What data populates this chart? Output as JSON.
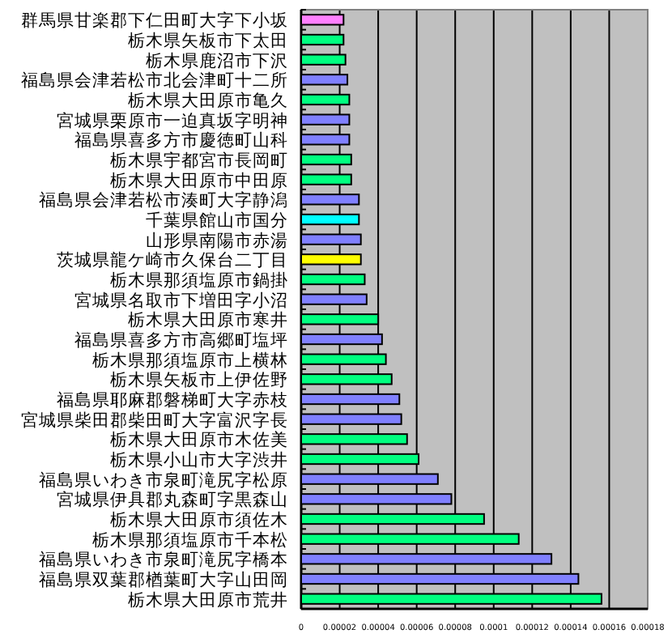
{
  "chart_data": {
    "type": "bar",
    "orientation": "horizontal",
    "categories": [
      "群馬県甘楽郡下仁田町大字下小坂",
      "栃木県矢板市下太田",
      "栃木県鹿沼市下沢",
      "福島県会津若松市北会津町十二所",
      "栃木県大田原市亀久",
      "宮城県栗原市一迫真坂字明神",
      "福島県喜多方市慶徳町山科",
      "栃木県宇都宮市長岡町",
      "栃木県大田原市中田原",
      "福島県会津若松市湊町大字静潟",
      "千葉県館山市国分",
      "山形県南陽市赤湯",
      "茨城県龍ケ崎市久保台二丁目",
      "栃木県那須塩原市鍋掛",
      "宮城県名取市下増田字小沼",
      "栃木県大田原市寒井",
      "福島県喜多方市高郷町塩坪",
      "栃木県那須塩原市上横林",
      "栃木県矢板市上伊佐野",
      "福島県耶麻郡磐梯町大字赤枝",
      "宮城県柴田郡柴田町大字富沢字長",
      "栃木県大田原市木佐美",
      "栃木県小山市大字渋井",
      "福島県いわき市泉町滝尻字松原",
      "宮城県伊具郡丸森町字黒森山",
      "栃木県大田原市須佐木",
      "栃木県那須塩原市千本松",
      "福島県いわき市泉町滝尻字橋本",
      "福島県双葉郡楢葉町大字山田岡",
      "栃木県大田原市荒井"
    ],
    "values": [
      2.2e-05,
      2.2e-05,
      2.3e-05,
      2.4e-05,
      2.5e-05,
      2.5e-05,
      2.5e-05,
      2.6e-05,
      2.6e-05,
      3e-05,
      3e-05,
      3.1e-05,
      3.1e-05,
      3.3e-05,
      3.4e-05,
      4e-05,
      4.2e-05,
      4.4e-05,
      4.7e-05,
      5.1e-05,
      5.2e-05,
      5.5e-05,
      6.1e-05,
      7.1e-05,
      7.8e-05,
      9.5e-05,
      0.000113,
      0.00013,
      0.000144,
      0.000156
    ],
    "colors": [
      "#ff80ff",
      "#00ff80",
      "#00ff80",
      "#8080ff",
      "#00ff80",
      "#8080ff",
      "#8080ff",
      "#00ff80",
      "#00ff80",
      "#8080ff",
      "#00ffff",
      "#8080ff",
      "#ffff00",
      "#00ff80",
      "#8080ff",
      "#00ff80",
      "#8080ff",
      "#00ff80",
      "#00ff80",
      "#8080ff",
      "#8080ff",
      "#00ff80",
      "#00ff80",
      "#8080ff",
      "#8080ff",
      "#00ff80",
      "#00ff80",
      "#8080ff",
      "#8080ff",
      "#00ff80"
    ],
    "xlim": [
      0,
      0.00018
    ],
    "xticks": [
      0,
      {
        "value": 2e-05,
        "label": "0.00002"
      },
      {
        "value": 4e-05,
        "label": "0.00004"
      },
      {
        "value": 6e-05,
        "label": "0.00006"
      },
      {
        "value": 8e-05,
        "label": "0.00008"
      },
      {
        "value": 0.0001,
        "label": "0.0001"
      },
      {
        "value": 0.00012,
        "label": "0.00012"
      },
      {
        "value": 0.00014,
        "label": "0.00014"
      },
      {
        "value": 0.00016,
        "label": "0.00016"
      },
      {
        "value": 0.00018,
        "label": "0.00018"
      }
    ],
    "grid": "x"
  }
}
